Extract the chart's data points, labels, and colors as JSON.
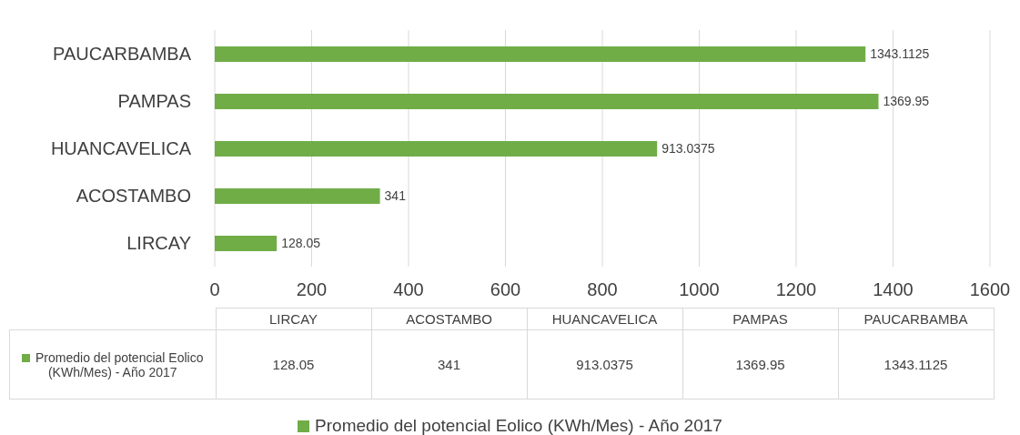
{
  "chart_data": {
    "type": "bar",
    "orientation": "horizontal",
    "categories": [
      "PAUCARBAMBA",
      "PAMPAS",
      "HUANCAVELICA",
      "ACOSTAMBO",
      "LIRCAY"
    ],
    "series": [
      {
        "name": "Promedio del potencial Eolico (KWh/Mes) - Año 2017",
        "color": "#70ad47",
        "values": [
          1343.1125,
          1369.95,
          913.0375,
          341,
          128.05
        ]
      }
    ],
    "xlim": [
      0,
      1600
    ],
    "xticks": [
      0,
      200,
      400,
      600,
      800,
      1000,
      1200,
      1400,
      1600
    ],
    "grid": "x",
    "data_labels": true,
    "legend": "bottom",
    "annotations": [
      "128.05",
      "341",
      "913.0375",
      "1369.95",
      "1343.1125"
    ]
  }
}
